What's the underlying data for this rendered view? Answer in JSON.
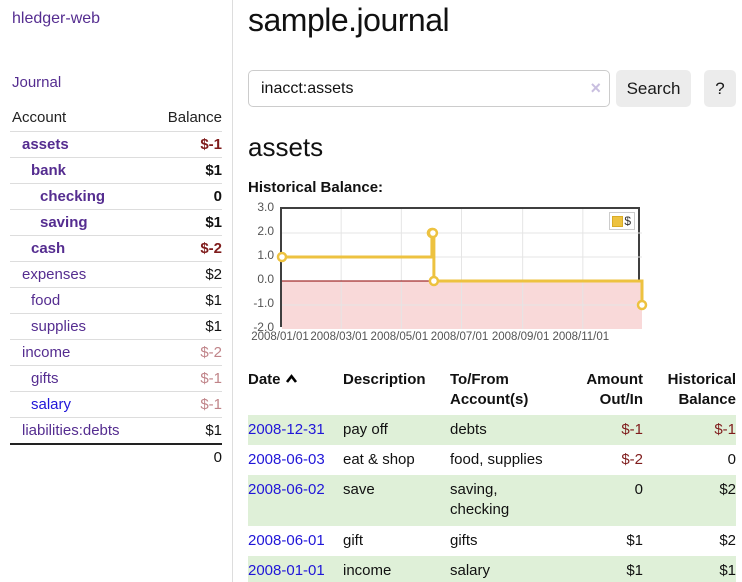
{
  "sidebar": {
    "brand": "hledger-web",
    "nav": {
      "journal": "Journal"
    },
    "accounts_table": {
      "headers": [
        "Account",
        "Balance"
      ],
      "rows": [
        {
          "name": "assets",
          "level": 1,
          "bold": true,
          "balance": "$-1",
          "balance_style": "neg",
          "link_style": "purple"
        },
        {
          "name": "bank",
          "level": 2,
          "bold": true,
          "balance": "$1",
          "balance_style": "normal",
          "link_style": "purple"
        },
        {
          "name": "checking",
          "level": 3,
          "bold": true,
          "balance": "0",
          "balance_style": "normal",
          "link_style": "purple"
        },
        {
          "name": "saving",
          "level": 3,
          "bold": true,
          "balance": "$1",
          "balance_style": "normal",
          "link_style": "purple"
        },
        {
          "name": "cash",
          "level": 2,
          "bold": true,
          "balance": "$-2",
          "balance_style": "neg",
          "link_style": "purple"
        },
        {
          "name": "expenses",
          "level": 1,
          "bold": false,
          "balance": "$2",
          "balance_style": "normal",
          "link_style": "purple"
        },
        {
          "name": "food",
          "level": 2,
          "bold": false,
          "balance": "$1",
          "balance_style": "normal",
          "link_style": "purple"
        },
        {
          "name": "supplies",
          "level": 2,
          "bold": false,
          "balance": "$1",
          "balance_style": "normal",
          "link_style": "purple"
        },
        {
          "name": "income",
          "level": 1,
          "bold": false,
          "balance": "$-2",
          "balance_style": "neg-light",
          "link_style": "purple"
        },
        {
          "name": "gifts",
          "level": 2,
          "bold": false,
          "balance": "$-1",
          "balance_style": "neg-light",
          "link_style": "purple"
        },
        {
          "name": "salary",
          "level": 2,
          "bold": false,
          "balance": "$-1",
          "balance_style": "neg-light",
          "link_style": "blue"
        },
        {
          "name": "liabilities:debts",
          "level": 1,
          "bold": false,
          "balance": "$1",
          "balance_style": "normal",
          "link_style": "purple"
        }
      ],
      "total": "0"
    }
  },
  "header": {
    "title": "sample.journal"
  },
  "search": {
    "value": "inacct:assets",
    "clear_icon": "×",
    "button": "Search",
    "help_button": "?"
  },
  "account_page": {
    "heading": "assets",
    "chart_label": "Historical Balance:"
  },
  "chart_data": {
    "type": "line",
    "step": true,
    "series": [
      {
        "name": "$",
        "color": "#edc240",
        "points": [
          [
            "2008-01-01",
            1
          ],
          [
            "2008-06-01",
            2
          ],
          [
            "2008-06-02",
            2
          ],
          [
            "2008-06-03",
            0
          ],
          [
            "2008-12-31",
            -1
          ]
        ]
      }
    ],
    "x_range": [
      "2008-01-01",
      "2008-12-31"
    ],
    "x_ticks": [
      "2008/01/01",
      "2008/03/01",
      "2008/05/01",
      "2008/07/01",
      "2008/09/01",
      "2008/11/01"
    ],
    "y_ticks": [
      "-2.0",
      "-1.0",
      "0.0",
      "1.0",
      "2.0",
      "3.0"
    ],
    "ylim": [
      -2,
      3
    ],
    "grid": true,
    "legend": {
      "label": "$",
      "position": "top-right"
    },
    "negative_region_fill": "#f9d9d9",
    "zero_line_color": "#8b0000",
    "grid_color": "#e5e5e5"
  },
  "register_table": {
    "columns": [
      "Date",
      "Description",
      "To/From Account(s)",
      "Amount Out/In",
      "Historical Balance"
    ],
    "rows": [
      {
        "date": "2008-12-31",
        "description": "pay off",
        "accounts": "debts",
        "amount": "$-1",
        "amount_neg": true,
        "balance": "$-1",
        "balance_neg": true
      },
      {
        "date": "2008-06-03",
        "description": "eat & shop",
        "accounts": "food, supplies",
        "amount": "$-2",
        "amount_neg": true,
        "balance": "0",
        "balance_neg": false
      },
      {
        "date": "2008-06-02",
        "description": "save",
        "accounts": "saving, checking",
        "amount": "0",
        "amount_neg": false,
        "balance": "$2",
        "balance_neg": false
      },
      {
        "date": "2008-06-01",
        "description": "gift",
        "accounts": "gifts",
        "amount": "$1",
        "amount_neg": false,
        "balance": "$2",
        "balance_neg": false
      },
      {
        "date": "2008-01-01",
        "description": "income",
        "accounts": "salary",
        "amount": "$1",
        "amount_neg": false,
        "balance": "$1",
        "balance_neg": false
      }
    ]
  },
  "colors": {
    "link_purple": "#552d90",
    "link_blue": "#2016d8",
    "negative": "#7f1c1c",
    "negative_light": "#c08489",
    "row_green": "#dff0d8",
    "series_gold": "#edc240",
    "button_gray": "#ececec"
  }
}
